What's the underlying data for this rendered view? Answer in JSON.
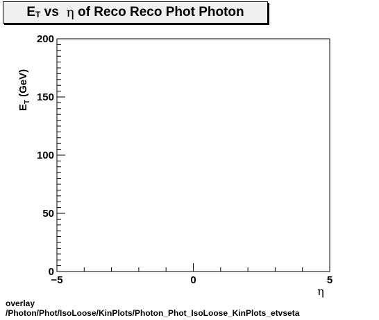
{
  "chart_data": {
    "type": "scatter",
    "title": "E_T vs η of Reco Reco Phot Photon",
    "xlabel": "η",
    "ylabel": "E_T (GeV)",
    "xlim": [
      -5,
      5
    ],
    "ylim": [
      0,
      200
    ],
    "x_ticks": [
      -5,
      0,
      5
    ],
    "y_ticks": [
      0,
      50,
      100,
      150,
      200
    ],
    "grid": false,
    "series": []
  },
  "footer": {
    "line1": "overlay",
    "line2": "/Photon/Phot/IsoLoose/KinPlots/Photon_Phot_IsoLoose_KinPlots_etvseta"
  }
}
